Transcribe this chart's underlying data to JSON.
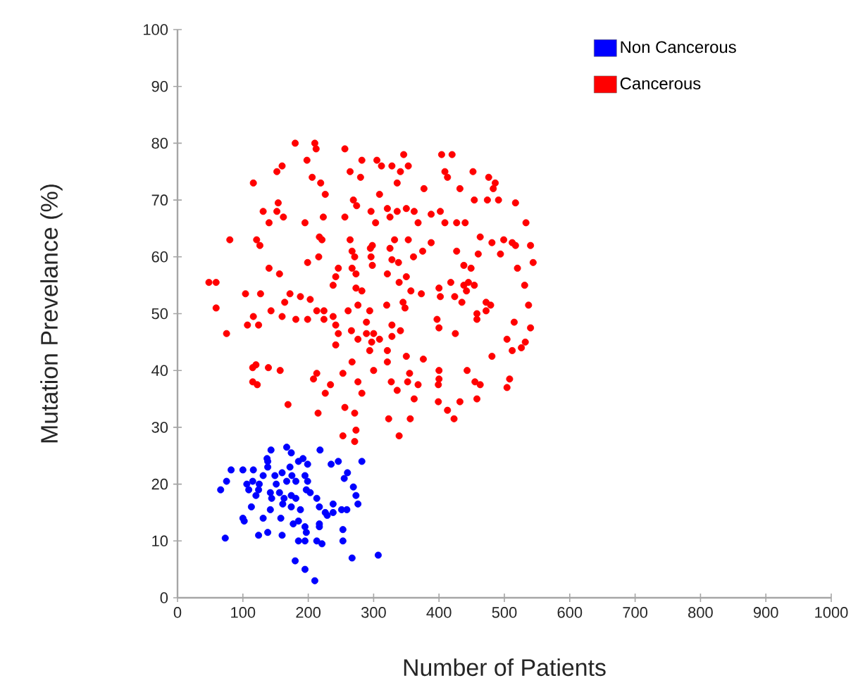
{
  "chart_data": {
    "type": "scatter",
    "xlabel": "Number of Patients",
    "ylabel": "Mutation Prevelance (%)",
    "xlim": [
      0,
      1000
    ],
    "ylim": [
      0,
      100
    ],
    "xticks": [
      0,
      100,
      200,
      300,
      400,
      500,
      600,
      700,
      800,
      900,
      1000
    ],
    "yticks": [
      0,
      10,
      20,
      30,
      40,
      50,
      60,
      70,
      80,
      90,
      100
    ],
    "grid": false,
    "legend": "top right",
    "marker": "circle",
    "series": [
      {
        "name": "Non Cancerous",
        "color": "#0000ff",
        "x": [
          143,
          167,
          174,
          218,
          137,
          138,
          192,
          185,
          199,
          235,
          246,
          282,
          138,
          82,
          100,
          116,
          160,
          172,
          131,
          149,
          175,
          195,
          260,
          75,
          106,
          115,
          125,
          151,
          167,
          181,
          199,
          255,
          66,
          109,
          124,
          142,
          156,
          174,
          197,
          203,
          269,
          120,
          144,
          163,
          181,
          213,
          273,
          238,
          276,
          113,
          142,
          161,
          174,
          188,
          217,
          226,
          238,
          251,
          259,
          100,
          102,
          131,
          158,
          185,
          195,
          217,
          229,
          177,
          217,
          253,
          138,
          124,
          160,
          197,
          73,
          185,
          195,
          213,
          221,
          253,
          180,
          267,
          307,
          195,
          210
        ],
        "values": [
          26,
          26.5,
          25.5,
          26,
          24.5,
          24,
          24.5,
          24,
          23.5,
          23.5,
          24,
          24,
          23,
          22.5,
          22.5,
          22.5,
          22,
          23,
          21.5,
          21.5,
          21.5,
          21.5,
          22,
          20.5,
          20,
          20.5,
          20,
          20,
          20.5,
          20.5,
          20.5,
          21,
          19,
          19,
          19,
          18.5,
          18.5,
          18,
          19,
          18.5,
          19.5,
          18,
          17.5,
          17.5,
          17.5,
          17.5,
          18,
          16.5,
          16.5,
          16,
          15.5,
          16.5,
          16,
          15.5,
          16,
          15,
          15,
          15.5,
          15.5,
          14,
          13.5,
          14,
          14,
          13.5,
          12.5,
          13,
          14.5,
          13,
          12.5,
          12,
          11.5,
          11,
          11,
          11.5,
          10.5,
          10,
          10,
          10,
          9.5,
          10,
          6.5,
          7,
          7.5,
          5,
          3
        ]
      },
      {
        "name": "Cancerous",
        "color": "#ff0000",
        "x": [
          180,
          210,
          212,
          256,
          160,
          198,
          282,
          305,
          328,
          346,
          404,
          420,
          116,
          152,
          206,
          219,
          264,
          280,
          312,
          341,
          353,
          377,
          409,
          413,
          452,
          476,
          486,
          483,
          432,
          336,
          309,
          226,
          154,
          131,
          152,
          162,
          140,
          195,
          223,
          256,
          269,
          274,
          296,
          321,
          336,
          350,
          362,
          388,
          402,
          454,
          474,
          491,
          517,
          325,
          303,
          368,
          409,
          427,
          440,
          533,
          80,
          121,
          126,
          217,
          221,
          264,
          298,
          332,
          353,
          388,
          463,
          481,
          499,
          512,
          517,
          540,
          267,
          295,
          325,
          375,
          361,
          427,
          460,
          494,
          271,
          296,
          328,
          338,
          199,
          216,
          140,
          156,
          246,
          267,
          298,
          321,
          438,
          449,
          520,
          544,
          48,
          59,
          242,
          273,
          339,
          350,
          418,
          445,
          531,
          238,
          273,
          282,
          357,
          373,
          400,
          438,
          442,
          454,
          104,
          127,
          172,
          188,
          203,
          164,
          402,
          424,
          435,
          472,
          479,
          537,
          59,
          143,
          213,
          224,
          238,
          261,
          276,
          294,
          320,
          345,
          348,
          458,
          472,
          116,
          160,
          181,
          199,
          224,
          289,
          328,
          397,
          458,
          515,
          75,
          107,
          124,
          242,
          246,
          266,
          289,
          300,
          309,
          328,
          341,
          400,
          425,
          504,
          540,
          242,
          276,
          294,
          321,
          297,
          512,
          526,
          532,
          267,
          321,
          350,
          376,
          481,
          120,
          115,
          139,
          157,
          213,
          253,
          300,
          355,
          400,
          443,
          208,
          115,
          122,
          234,
          276,
          327,
          352,
          368,
          400,
          399,
          455,
          463,
          508,
          504,
          226,
          282,
          336,
          362,
          399,
          432,
          458,
          169,
          256,
          271,
          215,
          323,
          356,
          413,
          423,
          273,
          253,
          339,
          271
        ],
        "values": [
          80,
          80,
          79,
          79,
          76,
          77,
          77,
          77,
          76,
          78,
          78,
          78,
          73,
          75,
          74,
          73,
          75,
          74,
          76,
          75,
          76,
          72,
          75,
          74,
          75,
          74,
          73,
          72,
          72,
          73,
          71,
          71,
          69.5,
          68,
          68,
          67,
          66,
          66,
          67,
          67,
          70,
          69,
          68,
          68.5,
          68,
          68.5,
          68,
          67.5,
          68,
          70,
          70,
          70,
          69.5,
          67,
          66,
          66,
          66,
          66,
          66,
          66,
          63,
          63,
          62,
          63.5,
          63,
          63,
          62,
          63,
          63,
          62.5,
          63.5,
          62.5,
          63,
          62.5,
          62,
          62,
          61,
          61.5,
          61.5,
          61,
          60,
          61,
          60.5,
          60.5,
          60,
          60,
          59.5,
          59,
          59,
          60,
          58,
          57,
          58,
          58,
          58.5,
          57,
          58.5,
          58,
          58,
          59,
          55.5,
          55.5,
          56.5,
          57,
          55.5,
          56.5,
          55.5,
          55.5,
          55,
          55,
          54.5,
          54,
          54,
          53.5,
          54.5,
          55,
          54,
          55,
          53.5,
          53.5,
          53.5,
          53,
          52.5,
          52,
          53,
          53,
          52,
          52,
          51.5,
          51.5,
          51,
          50.5,
          50.5,
          50.5,
          49.5,
          50.5,
          51.5,
          50.5,
          51.5,
          52,
          51,
          50,
          50.5,
          49.5,
          49.5,
          49,
          49,
          49,
          48.5,
          48,
          49,
          49,
          48.5,
          46.5,
          48,
          48,
          48,
          46.5,
          47,
          46.5,
          46.5,
          45.5,
          46,
          47,
          47.5,
          46.5,
          45.5,
          47.5,
          44.5,
          45.5,
          43.5,
          43.5,
          45,
          43.5,
          44,
          45,
          41.5,
          41.5,
          42.5,
          42,
          42.5,
          41,
          40.5,
          40.5,
          40,
          39.5,
          39.5,
          40,
          39.5,
          40,
          40,
          38.5,
          38,
          37.5,
          37.5,
          38,
          38,
          38,
          37.5,
          38.5,
          37.5,
          38,
          37.5,
          38.5,
          37,
          36,
          36,
          36.5,
          35,
          34.5,
          34.5,
          35,
          34,
          33.5,
          32.5,
          32.5,
          31.5,
          31.5,
          33,
          31.5,
          29.5,
          28.5,
          28.5,
          27.5
        ]
      }
    ]
  }
}
